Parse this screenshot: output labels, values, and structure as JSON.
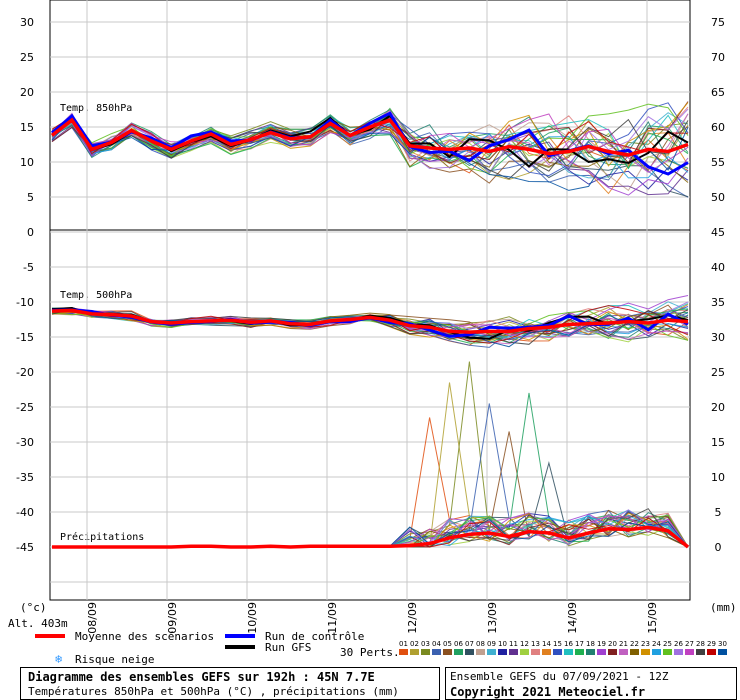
{
  "chart_data": {
    "type": "line",
    "x_dates": [
      "08/09",
      "09/09",
      "10/09",
      "11/09",
      "12/09",
      "13/09",
      "14/09",
      "15/09"
    ],
    "panel_temp850": {
      "label": "Temp. 850hPa",
      "left_ticks": [
        "30",
        "25",
        "20",
        "15",
        "10",
        "5",
        "0"
      ],
      "right_ticks": [
        "75",
        "70",
        "65",
        "60",
        "55",
        "50"
      ],
      "ylim": [
        0,
        33
      ],
      "mean": [
        13.8,
        16,
        11.8,
        12.8,
        14.5,
        13,
        11.8,
        13,
        14,
        12.5,
        13.2,
        14.2,
        13.3,
        13.6,
        15.5,
        13.8,
        15,
        16,
        12.3,
        12,
        11.8,
        12,
        11.5,
        12.2,
        11.8,
        11.2,
        11.5,
        12.2,
        11.5,
        11,
        11.8,
        11.5,
        12.5
      ]
    },
    "panel_temp500": {
      "label": "Temp. 500hPa",
      "left_ticks": [
        "-5",
        "-10",
        "-15",
        "-20",
        "-25",
        "-30",
        "-35",
        "-40",
        "-45"
      ],
      "right_ticks": [
        "45",
        "40",
        "35",
        "30",
        "25",
        "20",
        "15",
        "10",
        "5",
        "0"
      ],
      "ylim": [
        -50,
        0
      ],
      "mean": [
        -11.3,
        -11.2,
        -11.7,
        -11.8,
        -12,
        -12.8,
        -13,
        -12.8,
        -12.7,
        -12.6,
        -12.9,
        -12.7,
        -13.1,
        -13.2,
        -12.7,
        -12.5,
        -12.2,
        -12.6,
        -13.4,
        -13.6,
        -14.2,
        -14.3,
        -14.2,
        -14.2,
        -13.8,
        -13.6,
        -13.2,
        -13.1,
        -13,
        -12.8,
        -13,
        -12.6,
        -12.8
      ]
    },
    "precip_label": "Précipitations",
    "precip_mean": [
      0,
      0,
      0,
      0,
      0,
      0,
      0,
      0.1,
      0.1,
      0,
      0,
      0.1,
      0,
      0.1,
      0.1,
      0.1,
      0.1,
      0.1,
      0.2,
      0.5,
      1.3,
      1.8,
      2.0,
      1.5,
      2.2,
      2.0,
      1.3,
      2.0,
      2.6,
      2.5,
      2.8,
      2.3,
      0
    ],
    "precip_peaks": [
      18.5,
      23.5,
      26.5,
      20.5,
      16.5,
      22,
      12
    ],
    "unit_left": "(°c)",
    "unit_right": "(mm)",
    "altitude": "Alt. 403m",
    "legend": {
      "mean": "Moyenne des scénarios",
      "control": "Run de contrôle",
      "gfs": "Run GFS",
      "snow": "Risque neige",
      "perts": "30 Perts."
    },
    "pert_numbers": [
      "01",
      "02",
      "03",
      "04",
      "05",
      "06",
      "07",
      "08",
      "09",
      "10",
      "11",
      "12",
      "13",
      "14",
      "15",
      "16",
      "17",
      "18",
      "19",
      "20",
      "21",
      "22",
      "23",
      "24",
      "25",
      "26",
      "27",
      "28",
      "29",
      "30"
    ],
    "pert_colors": [
      "#e05010",
      "#b0a030",
      "#7a8a20",
      "#3a60b0",
      "#8a5020",
      "#20a060",
      "#305060",
      "#c0a090",
      "#40b0d0",
      "#2020a0",
      "#603090",
      "#a0d040",
      "#e08080",
      "#e08020",
      "#3050c0",
      "#20c0c0",
      "#20b050",
      "#208070",
      "#a040d0",
      "#802020",
      "#c060c0",
      "#806000",
      "#d09000",
      "#20a0e0",
      "#60c020",
      "#a070e0",
      "#c040c0",
      "#404040",
      "#c00000",
      "#0050a0"
    ],
    "footer_title": "Diagramme des ensembles GEFS sur 192h : 45N 7.7E",
    "footer_sub": "Températures 850hPa et 500hPa (°C) , précipitations (mm)",
    "ensemble_info": "Ensemble GEFS du 07/09/2021 - 12Z",
    "copyright": "Copyright 2021 Meteociel.fr",
    "colors": {
      "mean": "#ff0000",
      "control": "#0000ff",
      "gfs": "#000000",
      "grid": "#c8c8c8"
    }
  }
}
